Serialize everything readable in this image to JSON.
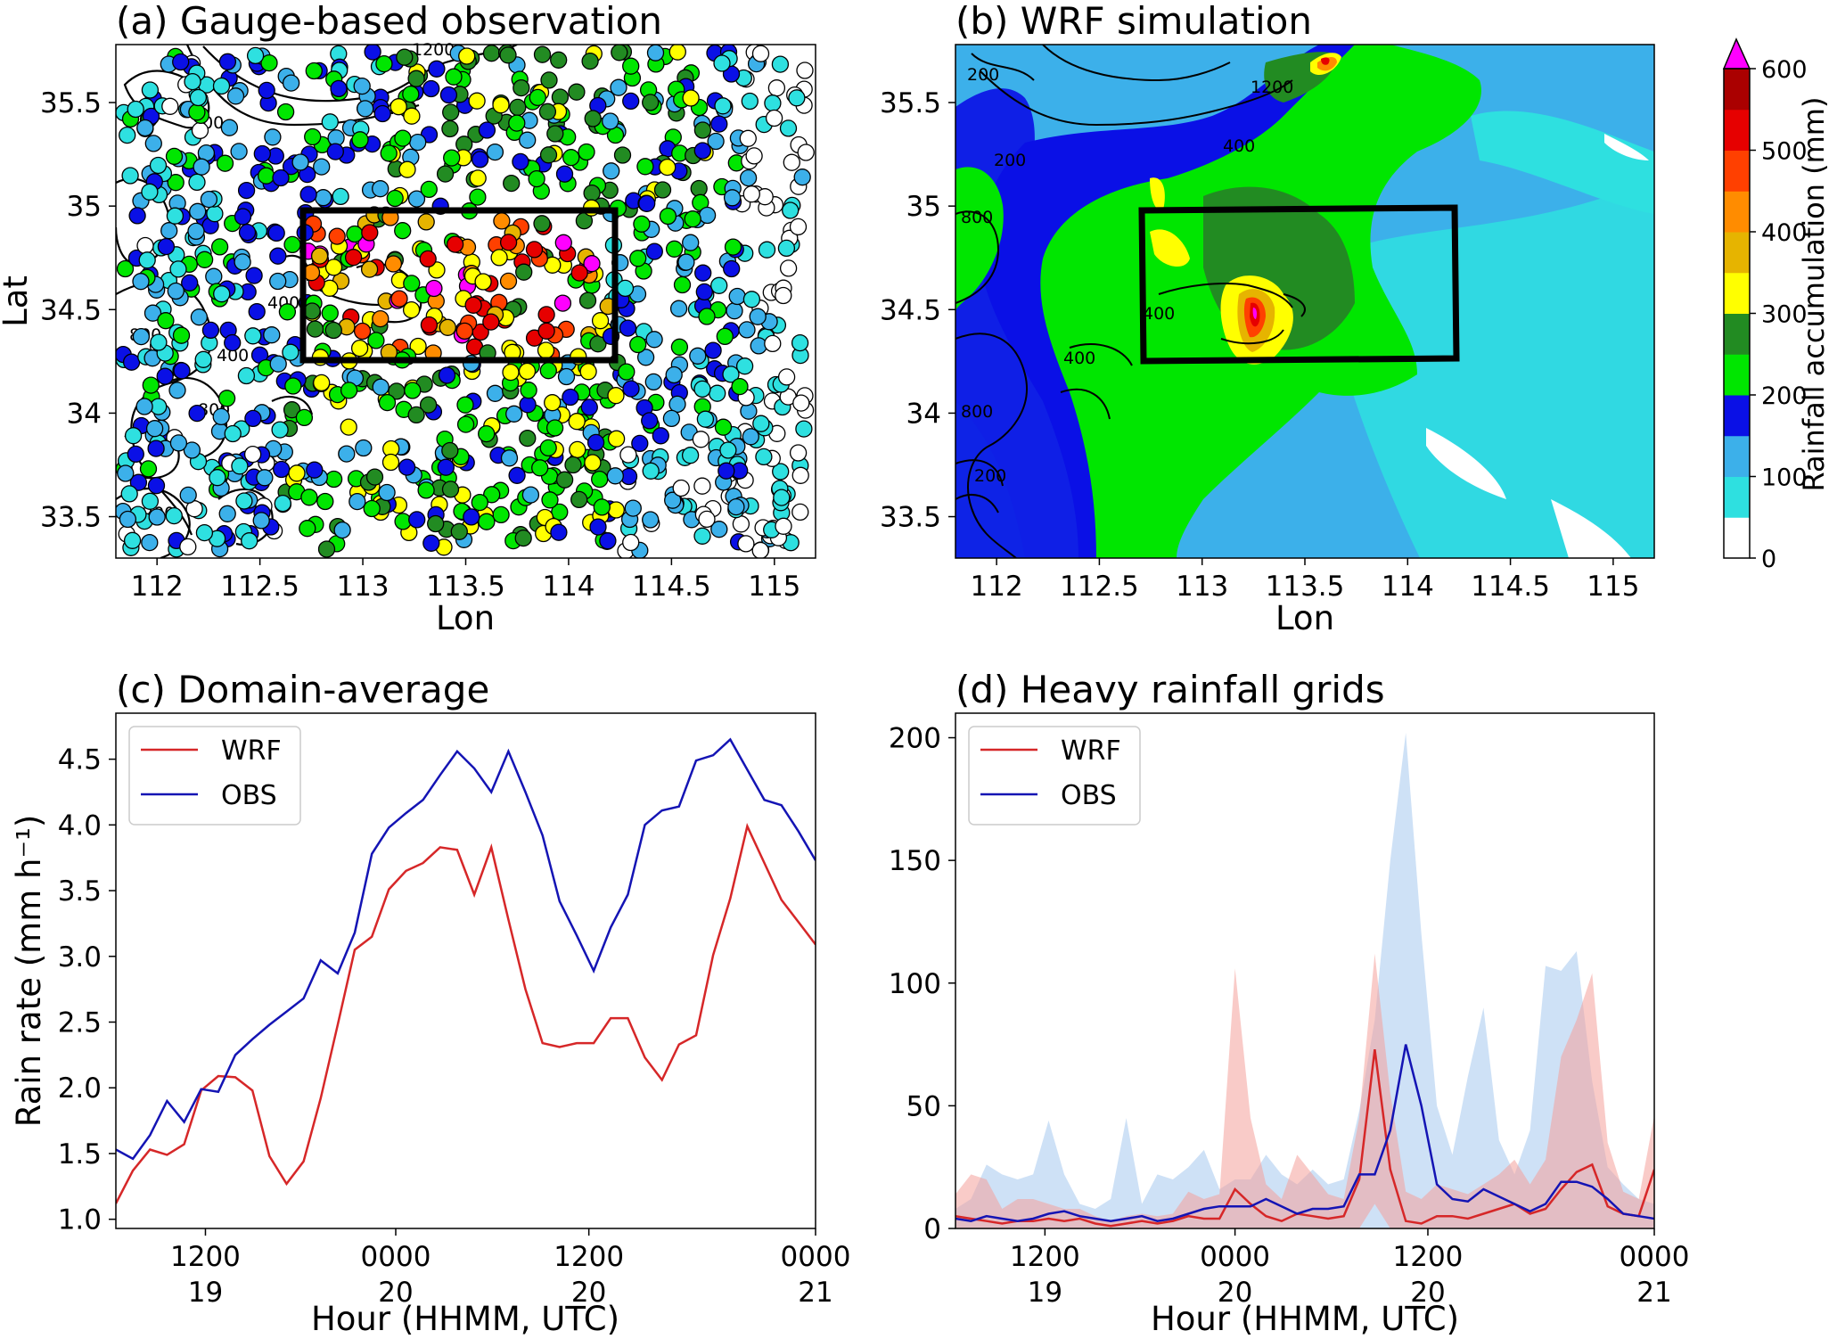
{
  "colors": {
    "wrf": "#d62728",
    "obs": "#1414b4",
    "wrf_band": "#f4a09a",
    "obs_band": "#a6c8ee",
    "levels": [
      "#ffffff",
      "#2ee0e0",
      "#3cb0ea",
      "#0a10e6",
      "#00e600",
      "#228b22",
      "#ffff00",
      "#e6b400",
      "#ff8c00",
      "#ff4000",
      "#e60000",
      "#aa0000",
      "#ff00ff"
    ]
  },
  "colorbar": {
    "label": "Rainfall accumulation (mm)",
    "ticks": [
      "0",
      "100",
      "200",
      "300",
      "400",
      "500",
      "600"
    ]
  },
  "panel_a": {
    "title": "(a) Gauge-based observation",
    "xlabel": "Lon",
    "ylabel": "Lat",
    "xticks": [
      "112",
      "112.5",
      "113",
      "113.5",
      "114",
      "114.5",
      "115"
    ],
    "yticks": [
      "33.5",
      "34",
      "34.5",
      "35",
      "35.5"
    ],
    "contour_labels": [
      "1200",
      "400",
      "400",
      "400",
      "800",
      "800",
      "200",
      "200"
    ]
  },
  "panel_b": {
    "title": "(b) WRF simulation",
    "xlabel": "Lon",
    "xticks": [
      "112",
      "112.5",
      "113",
      "113.5",
      "114",
      "114.5",
      "115"
    ],
    "yticks": [
      "33.5",
      "34",
      "34.5",
      "35",
      "35.5"
    ],
    "contour_labels": [
      "1200",
      "400",
      "200",
      "800",
      "400",
      "200",
      "800",
      "400",
      "200"
    ]
  },
  "chart_data": [
    {
      "type": "scatter",
      "title": "(a) Gauge-based observation",
      "xlabel": "Lon",
      "ylabel": "Lat",
      "xlim": [
        111.8,
        115.2
      ],
      "ylim": [
        33.3,
        35.78
      ],
      "box": {
        "lon": [
          112.7,
          114.22
        ],
        "lat": [
          34.27,
          35.0
        ]
      }
    },
    {
      "type": "heatmap",
      "title": "(b) WRF simulation",
      "xlabel": "Lon",
      "xlim": [
        111.8,
        115.2
      ],
      "ylim": [
        33.3,
        35.78
      ],
      "box": {
        "lon": [
          112.7,
          114.22
        ],
        "lat": [
          34.27,
          35.0
        ]
      }
    },
    {
      "type": "line",
      "title": "(c) Domain-average",
      "xlabel": "Hour (HHMM, UTC)",
      "ylabel": "Rain rate (mm h⁻¹)",
      "ylim": [
        0.93,
        4.85
      ],
      "yticks": [
        "1.0",
        "1.5",
        "2.0",
        "2.5",
        "3.0",
        "3.5",
        "4.0",
        "4.5"
      ],
      "xticks": [
        {
          "top": "1200",
          "bottom": "19"
        },
        {
          "top": "0000",
          "bottom": "20"
        },
        {
          "top": "1200",
          "bottom": "20"
        },
        {
          "top": "0000",
          "bottom": "21"
        }
      ],
      "legend": "upper-left",
      "series": [
        {
          "name": "WRF",
          "values": [
            1.12,
            1.37,
            1.53,
            1.49,
            1.57,
            1.98,
            2.09,
            2.08,
            1.98,
            1.48,
            1.27,
            1.44,
            1.92,
            2.48,
            3.05,
            3.15,
            3.51,
            3.65,
            3.71,
            3.83,
            3.81,
            3.47,
            3.83,
            3.28,
            2.75,
            2.34,
            2.31,
            2.34,
            2.34,
            2.53,
            2.53,
            2.23,
            2.06,
            2.33,
            2.4,
            3.01,
            3.44,
            3.99,
            3.71,
            3.43,
            3.26,
            3.09
          ]
        },
        {
          "name": "OBS",
          "values": [
            1.53,
            1.46,
            1.64,
            1.9,
            1.74,
            1.99,
            1.97,
            2.25,
            2.37,
            2.48,
            2.58,
            2.68,
            2.97,
            2.87,
            3.18,
            3.78,
            3.98,
            4.09,
            4.19,
            4.38,
            4.56,
            4.43,
            4.25,
            4.56,
            4.25,
            3.92,
            3.42,
            3.16,
            2.89,
            3.22,
            3.47,
            4.0,
            4.11,
            4.14,
            4.49,
            4.53,
            4.65,
            4.42,
            4.19,
            4.15,
            3.95,
            3.73
          ]
        }
      ]
    },
    {
      "type": "area",
      "title": "(d) Heavy rainfall grids",
      "xlabel": "Hour (HHMM, UTC)",
      "ylim": [
        0,
        210
      ],
      "yticks": [
        "0",
        "50",
        "100",
        "150",
        "200"
      ],
      "xticks": [
        {
          "top": "1200",
          "bottom": "19"
        },
        {
          "top": "0000",
          "bottom": "20"
        },
        {
          "top": "1200",
          "bottom": "20"
        },
        {
          "top": "0000",
          "bottom": "21"
        }
      ],
      "legend": "upper-left",
      "series": [
        {
          "name": "WRF",
          "values": [
            5,
            4,
            3,
            2,
            3,
            3,
            4,
            3,
            4,
            2,
            1,
            2,
            3,
            2,
            3,
            5,
            4,
            4,
            16,
            10,
            5,
            3,
            6,
            5,
            4,
            5,
            20,
            73,
            24,
            3,
            2,
            5,
            5,
            4,
            6,
            8,
            10,
            6,
            8,
            16,
            23,
            26,
            9,
            6,
            5,
            24
          ],
          "upper": [
            14,
            22,
            20,
            8,
            12,
            12,
            10,
            8,
            8,
            5,
            3,
            5,
            6,
            5,
            6,
            15,
            12,
            14,
            106,
            45,
            18,
            12,
            30,
            22,
            14,
            12,
            45,
            112,
            55,
            15,
            12,
            18,
            16,
            14,
            18,
            22,
            28,
            18,
            28,
            70,
            85,
            104,
            35,
            15,
            12,
            46
          ],
          "lower": [
            0,
            0,
            0,
            0,
            0,
            0,
            0,
            0,
            0,
            0,
            0,
            0,
            0,
            0,
            0,
            0,
            0,
            0,
            0,
            0,
            0,
            0,
            0,
            0,
            0,
            0,
            0,
            10,
            0,
            0,
            0,
            0,
            0,
            0,
            0,
            0,
            0,
            0,
            0,
            0,
            0,
            0,
            0,
            0,
            0,
            0
          ]
        },
        {
          "name": "OBS",
          "values": [
            4,
            3,
            5,
            4,
            3,
            4,
            6,
            7,
            5,
            4,
            3,
            4,
            5,
            3,
            4,
            6,
            8,
            9,
            9,
            9,
            12,
            9,
            6,
            8,
            8,
            9,
            22,
            22,
            40,
            75,
            50,
            18,
            12,
            11,
            16,
            13,
            10,
            7,
            10,
            19,
            19,
            17,
            12,
            6,
            5,
            4
          ],
          "upper": [
            8,
            12,
            26,
            22,
            20,
            22,
            44,
            22,
            10,
            8,
            12,
            45,
            10,
            22,
            20,
            25,
            32,
            16,
            20,
            20,
            30,
            22,
            18,
            24,
            18,
            20,
            48,
            85,
            150,
            202,
            120,
            50,
            30,
            62,
            90,
            36,
            22,
            40,
            107,
            105,
            113,
            60,
            25,
            18,
            12,
            10
          ],
          "lower": [
            0,
            0,
            0,
            0,
            0,
            0,
            0,
            0,
            0,
            0,
            0,
            0,
            0,
            0,
            0,
            0,
            0,
            0,
            0,
            0,
            0,
            0,
            0,
            0,
            0,
            0,
            0,
            0,
            0,
            0,
            0,
            0,
            0,
            0,
            0,
            0,
            0,
            0,
            0,
            0,
            0,
            0,
            0,
            0,
            0,
            0
          ]
        }
      ]
    }
  ]
}
